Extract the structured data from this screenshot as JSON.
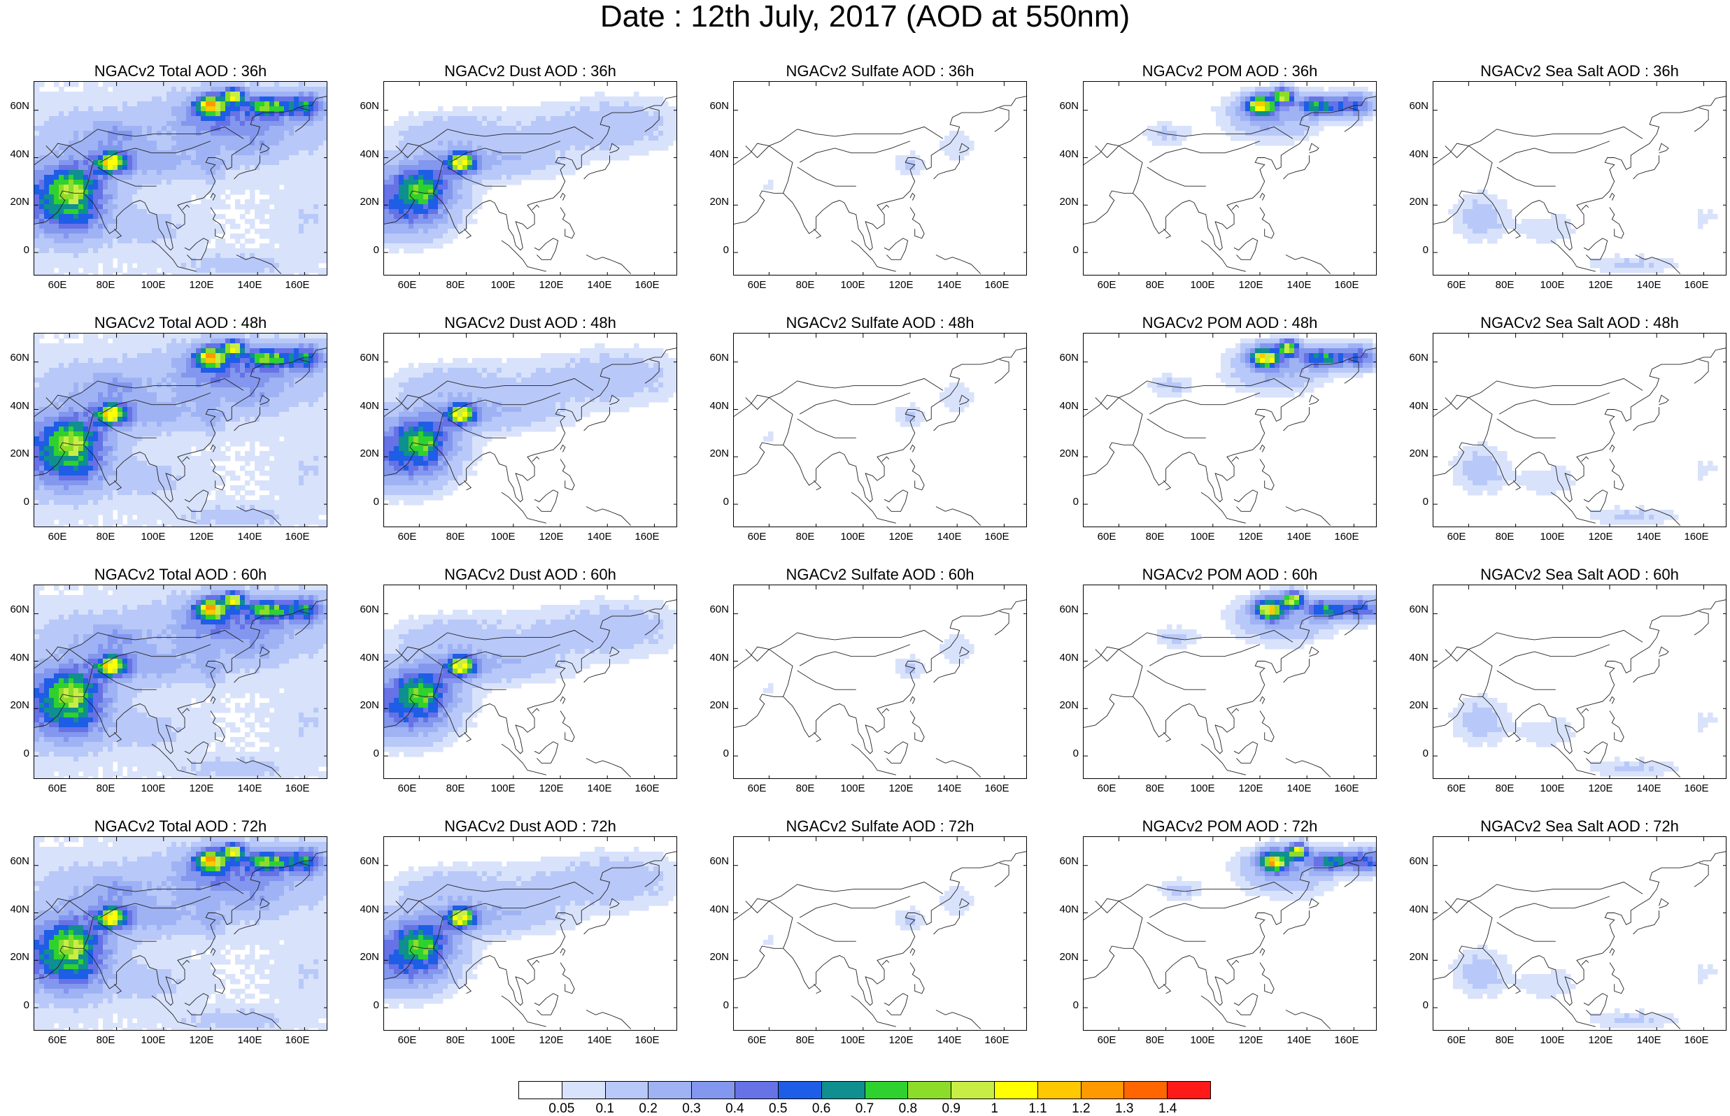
{
  "title": "Date : 12th July, 2017 (AOD at 550nm)",
  "map_extent": {
    "lon_min": 45,
    "lon_max": 170,
    "lat_min": -10,
    "lat_max": 72
  },
  "lat_ticks": [
    "60N",
    "40N",
    "20N",
    "0"
  ],
  "lon_ticks": [
    "60E",
    "80E",
    "100E",
    "120E",
    "140E",
    "160E"
  ],
  "panels": [
    [
      "NGACv2 Total AOD : 36h",
      "NGACv2 Dust AOD : 36h",
      "NGACv2 Sulfate AOD : 36h",
      "NGACv2 POM AOD : 36h",
      "NGACv2 Sea Salt AOD : 36h"
    ],
    [
      "NGACv2 Total AOD : 48h",
      "NGACv2 Dust AOD : 48h",
      "NGACv2 Sulfate AOD : 48h",
      "NGACv2 POM AOD : 48h",
      "NGACv2 Sea Salt AOD : 48h"
    ],
    [
      "NGACv2 Total AOD : 60h",
      "NGACv2 Dust AOD : 60h",
      "NGACv2 Sulfate AOD : 60h",
      "NGACv2 POM AOD : 60h",
      "NGACv2 Sea Salt AOD : 60h"
    ],
    [
      "NGACv2 Total AOD : 72h",
      "NGACv2 Dust AOD : 72h",
      "NGACv2 Sulfate AOD : 72h",
      "NGACv2 POM AOD : 72h",
      "NGACv2 Sea Salt  AOD : 72h"
    ]
  ],
  "colorbar": {
    "labels": [
      "0.05",
      "0.1",
      "0.2",
      "0.3",
      "0.4",
      "0.5",
      "0.6",
      "0.7",
      "0.8",
      "0.9",
      "1",
      "1.1",
      "1.2",
      "1.3",
      "1.4"
    ],
    "colors": [
      "#ffffff",
      "#d8e2fb",
      "#b8c8f8",
      "#9fb3f4",
      "#8397ee",
      "#6672e6",
      "#1e5de6",
      "#0f8f8f",
      "#2fd12f",
      "#8cdc2a",
      "#c8ee46",
      "#ffff00",
      "#ffc800",
      "#ff9900",
      "#ff6600",
      "#ff1a1a"
    ]
  }
}
